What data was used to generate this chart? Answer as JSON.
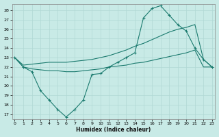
{
  "xlabel": "Humidex (Indice chaleur)",
  "background_color": "#c8eae6",
  "grid_color": "#b0d8d4",
  "line_color": "#1a7a6e",
  "xlim": [
    -0.3,
    23.3
  ],
  "ylim": [
    16.5,
    28.7
  ],
  "yticks": [
    17,
    18,
    19,
    20,
    21,
    22,
    23,
    24,
    25,
    26,
    27,
    28
  ],
  "xticks": [
    0,
    1,
    2,
    3,
    4,
    5,
    6,
    7,
    8,
    9,
    10,
    11,
    12,
    13,
    14,
    15,
    16,
    17,
    18,
    19,
    20,
    21,
    22,
    23
  ],
  "line1_x": [
    0,
    1,
    2,
    3,
    4,
    5,
    6,
    7,
    8,
    9,
    10,
    11,
    12,
    13,
    14,
    15,
    16,
    17,
    18,
    19,
    20,
    21,
    22,
    23
  ],
  "line1_y": [
    23,
    22,
    21.5,
    19.5,
    18.5,
    17.5,
    16.7,
    17.5,
    18.5,
    21.2,
    21.3,
    22,
    22.5,
    23,
    23.5,
    27.2,
    28.2,
    28.5,
    27.5,
    26.5,
    25.8,
    24,
    22.8,
    22
  ],
  "line2_x": [
    0,
    1,
    2,
    3,
    4,
    5,
    6,
    7,
    8,
    9,
    10,
    11,
    12,
    13,
    14,
    15,
    16,
    17,
    18,
    19,
    20,
    21,
    22,
    23
  ],
  "line2_y": [
    23,
    22.2,
    22.3,
    22.4,
    22.5,
    22.5,
    22.5,
    22.6,
    22.7,
    22.8,
    23.0,
    23.2,
    23.5,
    23.8,
    24.2,
    24.5,
    24.9,
    25.3,
    25.7,
    26.0,
    26.2,
    26.5,
    22.8,
    22
  ],
  "line3_x": [
    0,
    1,
    2,
    3,
    4,
    5,
    6,
    7,
    8,
    9,
    10,
    11,
    12,
    13,
    14,
    15,
    16,
    17,
    18,
    19,
    20,
    21,
    22,
    23
  ],
  "line3_y": [
    23,
    22,
    21.8,
    21.7,
    21.6,
    21.6,
    21.5,
    21.5,
    21.6,
    21.7,
    21.8,
    22.0,
    22.1,
    22.2,
    22.4,
    22.5,
    22.7,
    22.9,
    23.1,
    23.3,
    23.5,
    23.8,
    22,
    22
  ]
}
